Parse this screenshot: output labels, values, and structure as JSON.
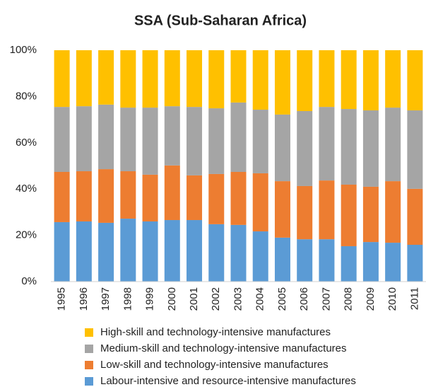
{
  "chart_data": {
    "type": "stacked_bar_100",
    "title": "SSA (Sub-Saharan Africa)",
    "categories": [
      "1995",
      "1996",
      "1997",
      "1998",
      "1999",
      "2000",
      "2001",
      "2002",
      "2003",
      "2004",
      "2005",
      "2006",
      "2007",
      "2008",
      "2009",
      "2010",
      "2011"
    ],
    "series": [
      {
        "name": "Labour-intensive and resource-intensive manufactures",
        "color": "#5b9bd5",
        "values": [
          25.7,
          26.0,
          25.4,
          27.2,
          26.0,
          26.6,
          26.6,
          24.8,
          24.5,
          21.7,
          19.0,
          18.3,
          18.3,
          15.3,
          17.1,
          16.8,
          15.9
        ]
      },
      {
        "name": "Low-skill and technology-intensive manufactures",
        "color": "#ed7d31",
        "values": [
          21.7,
          21.7,
          23.2,
          20.5,
          20.2,
          23.6,
          19.3,
          21.7,
          22.9,
          25.1,
          24.4,
          23.0,
          25.4,
          26.6,
          23.9,
          26.6,
          24.2
        ]
      },
      {
        "name": "Medium-skill and technology-intensive manufactures",
        "color": "#a5a5a5",
        "values": [
          28.1,
          28.1,
          27.9,
          27.5,
          29.0,
          25.6,
          29.6,
          28.4,
          30.0,
          27.5,
          28.8,
          32.4,
          31.8,
          32.7,
          33.0,
          31.8,
          33.9
        ]
      },
      {
        "name": "High-skill and technology-intensive manufactures",
        "color": "#ffc000",
        "values": [
          24.5,
          24.2,
          23.5,
          24.8,
          24.8,
          24.2,
          24.5,
          25.1,
          22.6,
          25.7,
          27.8,
          26.3,
          24.5,
          25.4,
          26.0,
          24.8,
          26.0
        ]
      }
    ],
    "ylim": [
      0,
      100
    ],
    "yticks": [
      {
        "value": 0,
        "label": "0%"
      },
      {
        "value": 20,
        "label": "20%"
      },
      {
        "value": 40,
        "label": "40%"
      },
      {
        "value": 60,
        "label": "60%"
      },
      {
        "value": 80,
        "label": "80%"
      },
      {
        "value": 100,
        "label": "100%"
      }
    ],
    "grid": false
  }
}
